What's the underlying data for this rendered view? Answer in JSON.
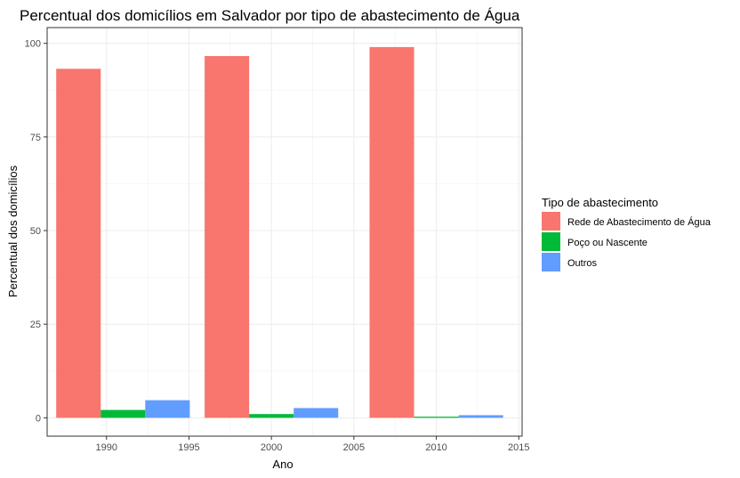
{
  "chart_data": {
    "type": "bar",
    "title": "Percentual dos domicílios em Salvador por tipo de abastecimento de Água",
    "xlabel": "Ano",
    "ylabel": "Percentual dos domicílios",
    "x": [
      1991,
      2000,
      2010
    ],
    "xlim": [
      1986.4,
      2015.2
    ],
    "ylim": [
      -4.9,
      104.2
    ],
    "xticks": [
      1990,
      1995,
      2000,
      2005,
      2010,
      2015
    ],
    "yticks": [
      0,
      25,
      50,
      75,
      100
    ],
    "bar_width": 8.1,
    "grid": true,
    "legend_title": "Tipo de abastecimento",
    "legend_position": "right",
    "series": [
      {
        "name": "Rede de Abastecimento de Água",
        "color": "#F8766D",
        "values": [
          93.2,
          96.6,
          99.0
        ]
      },
      {
        "name": "Poço ou Nascente",
        "color": "#00BA38",
        "values": [
          2.1,
          1.0,
          0.3
        ]
      },
      {
        "name": "Outros",
        "color": "#619CFF",
        "values": [
          4.7,
          2.6,
          0.7
        ]
      }
    ]
  }
}
